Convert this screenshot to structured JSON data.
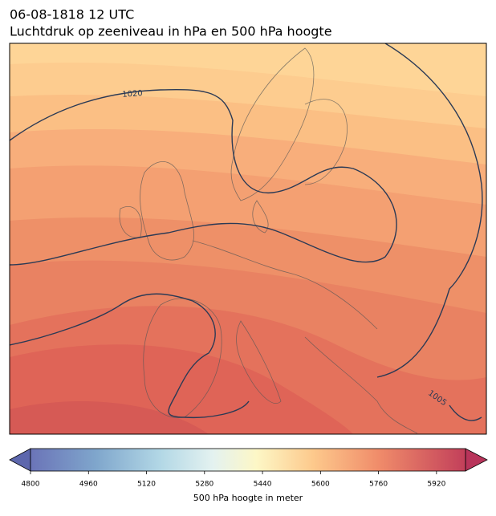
{
  "title": "06-08-1818 12 UTC",
  "subtitle": "Luchtdruk op zeeniveau in hPa en 500 hPa hoogte",
  "contour_labels": [
    "1020",
    "1005"
  ],
  "colorbar": {
    "label": "500 hPa hoogte in meter",
    "range": [
      4800,
      6000
    ],
    "ticks": [
      4800,
      4960,
      5120,
      5280,
      5440,
      5600,
      5760,
      5920
    ]
  }
}
